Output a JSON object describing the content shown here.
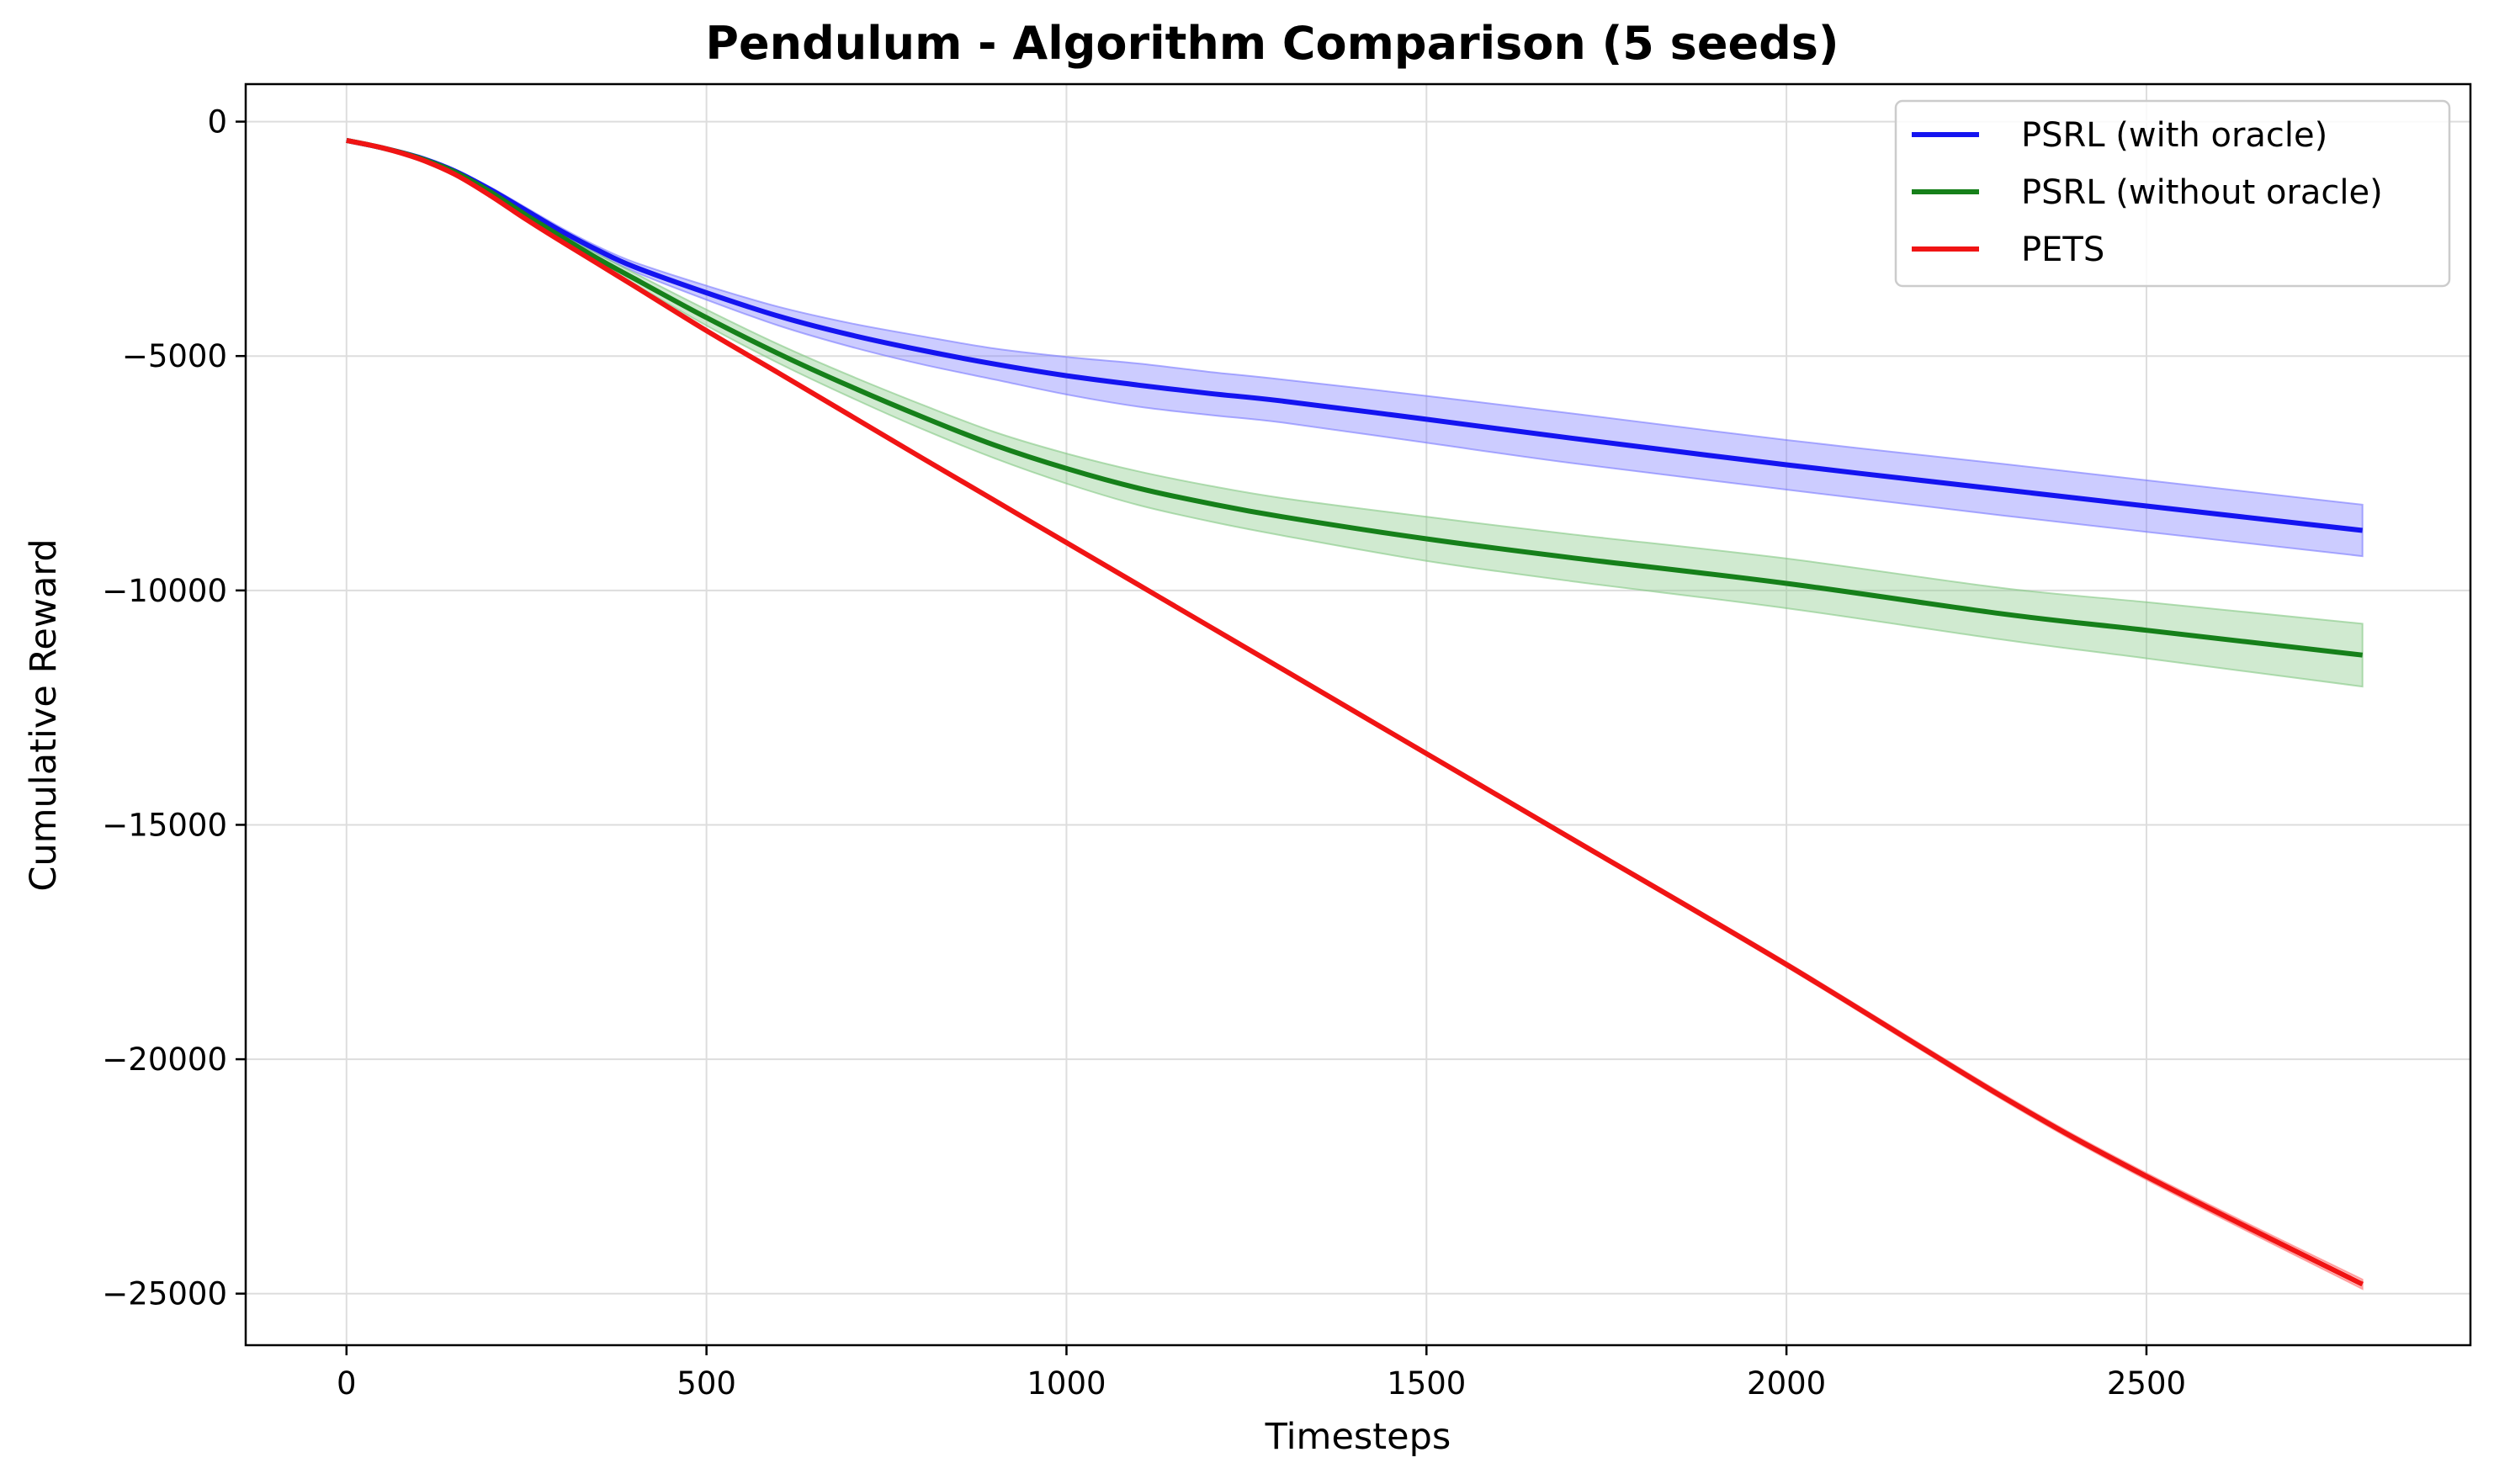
{
  "chart_data": {
    "type": "line",
    "title": "Pendulum - Algorithm Comparison (5 seeds)",
    "xlabel": "Timesteps",
    "ylabel": "Cumulative Reward",
    "xlim": [
      -140,
      2950
    ],
    "ylim": [
      -26100,
      800
    ],
    "x_ticks": [
      0,
      500,
      1000,
      1500,
      2000,
      2500
    ],
    "x_tick_labels": [
      "0",
      "500",
      "1000",
      "1500",
      "2000",
      "2500"
    ],
    "y_ticks": [
      0,
      -5000,
      -10000,
      -15000,
      -20000,
      -25000
    ],
    "y_tick_labels": [
      "0",
      "−5000",
      "−10000",
      "−15000",
      "−20000",
      "−25000"
    ],
    "grid": true,
    "legend_position": "top-right",
    "shaded_band": "±std across seeds",
    "x": [
      0,
      50,
      100,
      150,
      200,
      250,
      300,
      350,
      400,
      500,
      600,
      700,
      800,
      900,
      1000,
      1100,
      1200,
      1300,
      1500,
      1700,
      2000,
      2300,
      2500,
      2800
    ],
    "series": [
      {
        "name": "PSRL (with oracle)",
        "color": "#1414f0",
        "fill": "#7878ff",
        "values": [
          -400,
          -560,
          -760,
          -1050,
          -1450,
          -1900,
          -2350,
          -2750,
          -3100,
          -3650,
          -4150,
          -4550,
          -4880,
          -5170,
          -5420,
          -5620,
          -5800,
          -5960,
          -6350,
          -6750,
          -7320,
          -7850,
          -8200,
          -8720
        ],
        "lower": [
          -400,
          -570,
          -790,
          -1090,
          -1500,
          -1960,
          -2420,
          -2830,
          -3200,
          -3800,
          -4350,
          -4800,
          -5180,
          -5500,
          -5820,
          -6080,
          -6260,
          -6420,
          -6850,
          -7280,
          -7850,
          -8400,
          -8750,
          -9270
        ],
        "upper": [
          -400,
          -550,
          -740,
          -1020,
          -1400,
          -1840,
          -2280,
          -2670,
          -3000,
          -3500,
          -3950,
          -4300,
          -4580,
          -4840,
          -5020,
          -5160,
          -5340,
          -5500,
          -5850,
          -6220,
          -6790,
          -7300,
          -7650,
          -8170
        ]
      },
      {
        "name": "PSRL (without oracle)",
        "color": "#16801a",
        "fill": "#84c884",
        "values": [
          -400,
          -560,
          -770,
          -1070,
          -1500,
          -2000,
          -2470,
          -2930,
          -3350,
          -4180,
          -4950,
          -5650,
          -6300,
          -6900,
          -7400,
          -7820,
          -8150,
          -8430,
          -8900,
          -9300,
          -9850,
          -10500,
          -10850,
          -11380
        ],
        "lower": [
          -400,
          -570,
          -790,
          -1100,
          -1540,
          -2060,
          -2550,
          -3030,
          -3470,
          -4350,
          -5150,
          -5880,
          -6560,
          -7180,
          -7720,
          -8180,
          -8530,
          -8830,
          -9370,
          -9800,
          -10380,
          -11050,
          -11450,
          -12050
        ],
        "upper": [
          -400,
          -550,
          -750,
          -1040,
          -1460,
          -1940,
          -2390,
          -2830,
          -3230,
          -4010,
          -4750,
          -5420,
          -6040,
          -6620,
          -7080,
          -7460,
          -7770,
          -8030,
          -8430,
          -8800,
          -9320,
          -9950,
          -10250,
          -10710
        ]
      },
      {
        "name": "PETS",
        "color": "#f01414",
        "fill": "#ff7070",
        "values": [
          -400,
          -560,
          -790,
          -1120,
          -1580,
          -2090,
          -2570,
          -3040,
          -3510,
          -4460,
          -5360,
          -6270,
          -7180,
          -8080,
          -8980,
          -9880,
          -10780,
          -11680,
          -13480,
          -15280,
          -17980,
          -20800,
          -22500,
          -24800
        ],
        "lower": [
          -400,
          -560,
          -790,
          -1120,
          -1580,
          -2090,
          -2570,
          -3040,
          -3520,
          -4470,
          -5370,
          -6290,
          -7200,
          -8100,
          -9000,
          -9900,
          -10800,
          -11710,
          -13510,
          -15320,
          -18030,
          -20860,
          -22570,
          -24900
        ],
        "upper": [
          -400,
          -560,
          -790,
          -1120,
          -1580,
          -2090,
          -2570,
          -3040,
          -3500,
          -4450,
          -5350,
          -6250,
          -7160,
          -8060,
          -8960,
          -9860,
          -10760,
          -11650,
          -13450,
          -15240,
          -17930,
          -20740,
          -22430,
          -24700
        ]
      }
    ]
  }
}
